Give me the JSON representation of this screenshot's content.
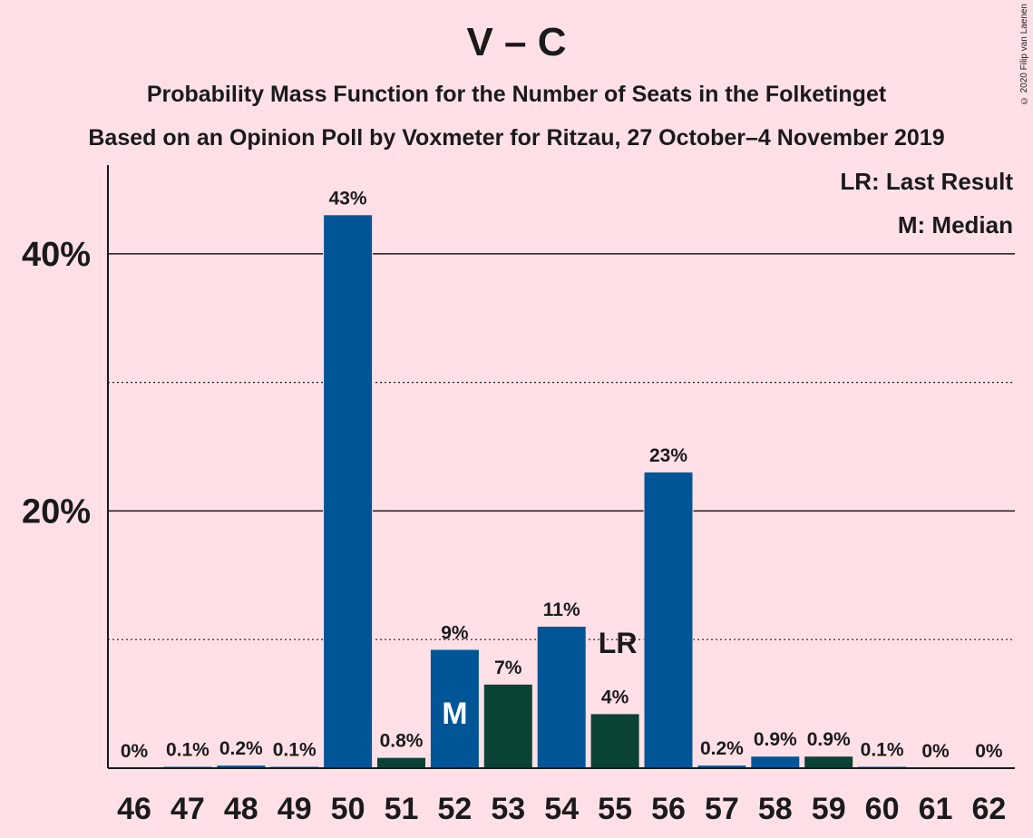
{
  "header": {
    "title": "V – C",
    "subtitle": "Probability Mass Function for the Number of Seats in the Folketinget",
    "subtitle2": "Based on an Opinion Poll by Voxmeter for Ritzau, 27 October–4 November 2019",
    "copyright": "© 2020 Filip van Laenen"
  },
  "chart_data": {
    "type": "bar",
    "title": "V – C",
    "subtitle": "Probability Mass Function for the Number of Seats in the Folketinget",
    "categories": [
      "46",
      "47",
      "48",
      "49",
      "50",
      "51",
      "52",
      "53",
      "54",
      "55",
      "56",
      "57",
      "58",
      "59",
      "60",
      "61",
      "62"
    ],
    "values": [
      0,
      0.1,
      0.2,
      0.1,
      43,
      0.8,
      9.2,
      6.5,
      11,
      4.2,
      23,
      0.2,
      0.9,
      0.9,
      0.1,
      0,
      0
    ],
    "labels": [
      "0%",
      "0.1%",
      "0.2%",
      "0.1%",
      "43%",
      "0.8%",
      "9%",
      "7%",
      "11%",
      "4%",
      "23%",
      "0.2%",
      "0.9%",
      "0.9%",
      "0.1%",
      "0%",
      "0%"
    ],
    "bar_colors": [
      "#005596",
      "#005596",
      "#005596",
      "#005596",
      "#005596",
      "#0a4236",
      "#005596",
      "#0a4236",
      "#005596",
      "#0a4236",
      "#005596",
      "#005596",
      "#005596",
      "#0a4236",
      "#005596",
      "#005596",
      "#005596"
    ],
    "ylim": [
      0,
      46.9
    ],
    "yticks": [
      {
        "value": 20,
        "label": "20%"
      },
      {
        "value": 40,
        "label": "40%"
      }
    ],
    "minor_gridlines": [
      10,
      30
    ],
    "median": {
      "seat": "52",
      "label": "M"
    },
    "last_result": {
      "seat": "55",
      "label": "LR"
    },
    "legend": [
      "LR: Last Result",
      "M: Median"
    ],
    "legend_position": "top-right",
    "colors": {
      "primary": "#005596",
      "secondary": "#0a4236",
      "background": "#ffe0e6"
    }
  }
}
